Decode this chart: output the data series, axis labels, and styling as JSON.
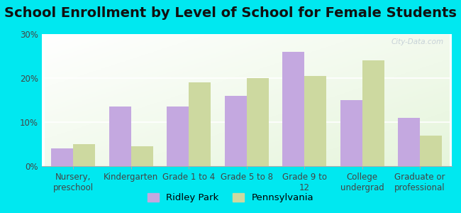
{
  "title": "School Enrollment by Level of School for Female Students",
  "categories": [
    "Nursery,\npreschool",
    "Kindergarten",
    "Grade 1 to 4",
    "Grade 5 to 8",
    "Grade 9 to\n12",
    "College\nundergrad",
    "Graduate or\nprofessional"
  ],
  "ridley_park": [
    4.0,
    13.5,
    13.5,
    16.0,
    26.0,
    15.0,
    11.0
  ],
  "pennsylvania": [
    5.0,
    4.5,
    19.0,
    20.0,
    20.5,
    24.0,
    7.0
  ],
  "ridley_color": "#c4a8e0",
  "pennsylvania_color": "#cdd9a0",
  "background_color": "#00e8f0",
  "ylim": [
    0,
    30
  ],
  "yticks": [
    0,
    10,
    20,
    30
  ],
  "bar_width": 0.38,
  "legend_ridley": "Ridley Park",
  "legend_pennsylvania": "Pennsylvania",
  "title_fontsize": 14,
  "tick_fontsize": 8.5,
  "legend_fontsize": 9.5
}
